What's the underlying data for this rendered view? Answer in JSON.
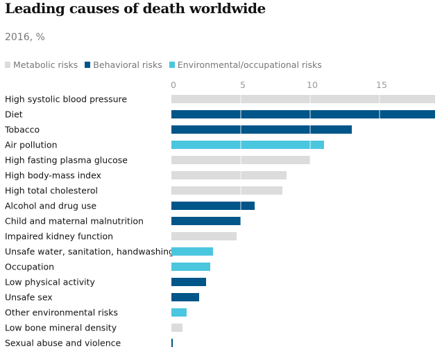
{
  "title": "Leading causes of death worldwide",
  "subtitle": "2016, %",
  "legend": [
    {
      "label": "Metabolic risks",
      "color": "#dcdcdc"
    },
    {
      "label": "Behavioral risks",
      "color": "#005689"
    },
    {
      "label": "Environmental/occupational risks",
      "color": "#4bc6df"
    }
  ],
  "chart_data": {
    "type": "bar",
    "orientation": "horizontal",
    "title": "Leading causes of death worldwide",
    "subtitle": "2016, %",
    "xlim": [
      0,
      19
    ],
    "ticks": [
      0,
      5,
      10,
      15
    ],
    "grid": true,
    "legend_position": "top-left",
    "categories": [
      "High systolic blood pressure",
      "Diet",
      "Tobacco",
      "Air pollution",
      "High fasting plasma glucose",
      "High body-mass index",
      "High total cholesterol",
      "Alcohol and drug use",
      "Child and maternal malnutrition",
      "Impaired kidney function",
      "Unsafe water, sanitation, handwashing",
      "Occupation",
      "Low physical activity",
      "Unsafe sex",
      "Other environmental risks",
      "Low bone mineral density",
      "Sexual abuse and violence"
    ],
    "values": [
      19.0,
      19.0,
      13.0,
      11.0,
      10.0,
      8.3,
      8.0,
      6.0,
      5.0,
      4.7,
      3.0,
      2.8,
      2.5,
      2.0,
      1.1,
      0.8,
      0.1
    ],
    "groups": [
      "Metabolic risks",
      "Behavioral risks",
      "Behavioral risks",
      "Environmental/occupational risks",
      "Metabolic risks",
      "Metabolic risks",
      "Metabolic risks",
      "Behavioral risks",
      "Behavioral risks",
      "Metabolic risks",
      "Environmental/occupational risks",
      "Environmental/occupational risks",
      "Behavioral risks",
      "Behavioral risks",
      "Environmental/occupational risks",
      "Metabolic risks",
      "Behavioral risks"
    ],
    "colors": {
      "Metabolic risks": "#dcdcdc",
      "Behavioral risks": "#005689",
      "Environmental/occupational risks": "#4bc6df"
    },
    "tick_color": "#999999",
    "grid_color": "#ffffff"
  }
}
